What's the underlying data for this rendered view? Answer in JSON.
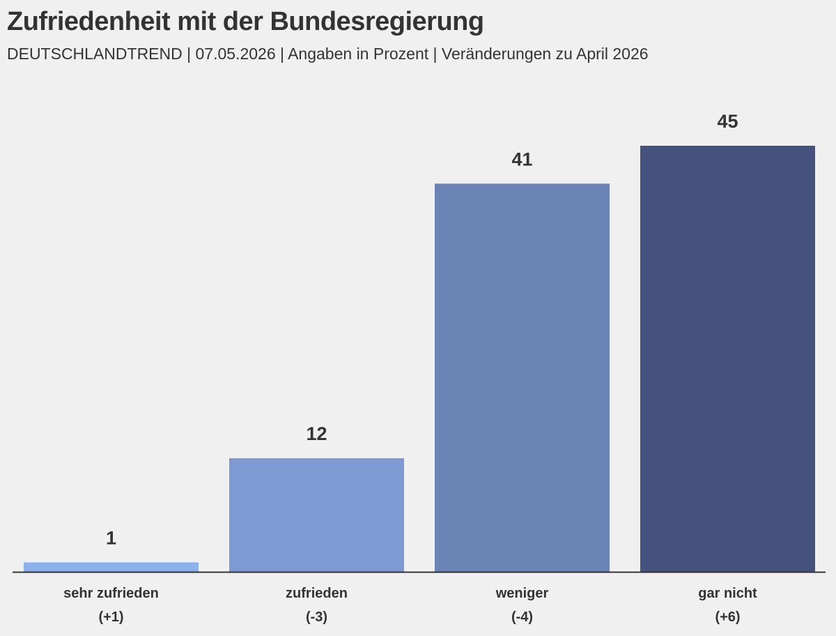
{
  "header": {
    "title": "Zufriedenheit mit der Bundesregierung",
    "subtitle": "DEUTSCHLANDTREND | 07.05.2026 | Angaben in Prozent | Veränderungen zu April 2026"
  },
  "chart_data": {
    "type": "bar",
    "title": "Zufriedenheit mit der Bundesregierung",
    "subtitle": "DEUTSCHLANDTREND | 07.05.2026 | Angaben in Prozent | Veränderungen zu April 2026",
    "categories": [
      "sehr zufrieden",
      "zufrieden",
      "weniger",
      "gar nicht"
    ],
    "values": [
      1,
      12,
      41,
      45
    ],
    "changes": [
      "(+1)",
      "(-3)",
      "(-4)",
      "(+6)"
    ],
    "colors": [
      "#8cb2ec",
      "#7d9bd2",
      "#6b84b6",
      "#45527d"
    ],
    "axis_color": "#333333",
    "ylim": [
      0,
      45
    ],
    "grid": false,
    "legend": "none"
  }
}
